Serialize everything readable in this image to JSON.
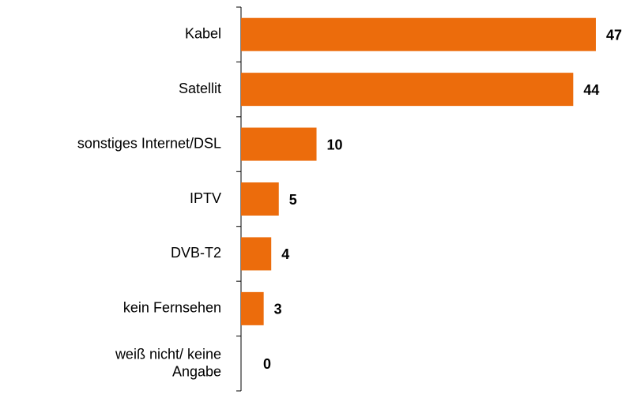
{
  "chart_data": {
    "type": "bar",
    "orientation": "horizontal",
    "categories": [
      "Kabel",
      "Satellit",
      "sonstiges Internet/DSL",
      "IPTV",
      "DVB-T2",
      "kein Fernsehen",
      "weiß nicht/ keine\nAngabe"
    ],
    "values": [
      47,
      44,
      10,
      5,
      4,
      3,
      0
    ],
    "color": "#ec6c0c"
  }
}
